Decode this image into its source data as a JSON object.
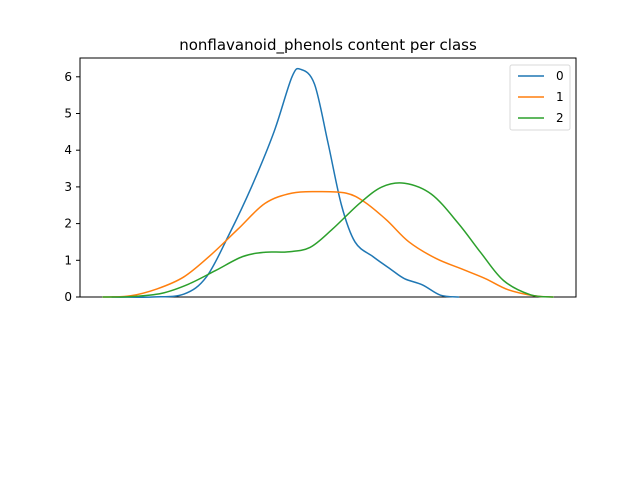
{
  "chart_data": {
    "type": "line",
    "title": "nonflavanoid_phenols content per class",
    "xlabel": "",
    "ylabel": "",
    "ylim": [
      0,
      6.5
    ],
    "yticks": [
      0,
      1,
      2,
      3,
      4,
      5,
      6
    ],
    "x_ticks_shown": false,
    "grid": false,
    "legend_position": "top-right",
    "series": [
      {
        "name": "0",
        "color": "#1f77b4",
        "points": [
          [
            0.02,
            0.0
          ],
          [
            0.11,
            0.0
          ],
          [
            0.18,
            0.08
          ],
          [
            0.23,
            0.55
          ],
          [
            0.28,
            1.7
          ],
          [
            0.33,
            3.0
          ],
          [
            0.38,
            4.5
          ],
          [
            0.42,
            6.0
          ],
          [
            0.44,
            6.2
          ],
          [
            0.47,
            5.8
          ],
          [
            0.5,
            4.2
          ],
          [
            0.53,
            2.5
          ],
          [
            0.56,
            1.5
          ],
          [
            0.6,
            1.1
          ],
          [
            0.64,
            0.75
          ],
          [
            0.67,
            0.5
          ],
          [
            0.71,
            0.33
          ],
          [
            0.75,
            0.05
          ],
          [
            0.79,
            0.0
          ]
        ]
      },
      {
        "name": "1",
        "color": "#ff7f0e",
        "points": [
          [
            0.0,
            0.0
          ],
          [
            0.06,
            0.03
          ],
          [
            0.12,
            0.22
          ],
          [
            0.18,
            0.55
          ],
          [
            0.24,
            1.15
          ],
          [
            0.3,
            1.85
          ],
          [
            0.36,
            2.55
          ],
          [
            0.42,
            2.83
          ],
          [
            0.48,
            2.87
          ],
          [
            0.54,
            2.83
          ],
          [
            0.58,
            2.6
          ],
          [
            0.63,
            2.1
          ],
          [
            0.68,
            1.5
          ],
          [
            0.74,
            1.05
          ],
          [
            0.8,
            0.75
          ],
          [
            0.85,
            0.5
          ],
          [
            0.9,
            0.2
          ],
          [
            0.96,
            0.03
          ],
          [
            1.0,
            0.0
          ]
        ]
      },
      {
        "name": "2",
        "color": "#2ca02c",
        "points": [
          [
            0.0,
            0.0
          ],
          [
            0.06,
            0.01
          ],
          [
            0.13,
            0.1
          ],
          [
            0.19,
            0.35
          ],
          [
            0.25,
            0.72
          ],
          [
            0.31,
            1.1
          ],
          [
            0.36,
            1.22
          ],
          [
            0.41,
            1.23
          ],
          [
            0.46,
            1.35
          ],
          [
            0.51,
            1.85
          ],
          [
            0.57,
            2.55
          ],
          [
            0.62,
            3.0
          ],
          [
            0.67,
            3.1
          ],
          [
            0.73,
            2.8
          ],
          [
            0.79,
            2.0
          ],
          [
            0.84,
            1.2
          ],
          [
            0.89,
            0.45
          ],
          [
            0.95,
            0.06
          ],
          [
            1.0,
            0.0
          ]
        ]
      }
    ]
  }
}
